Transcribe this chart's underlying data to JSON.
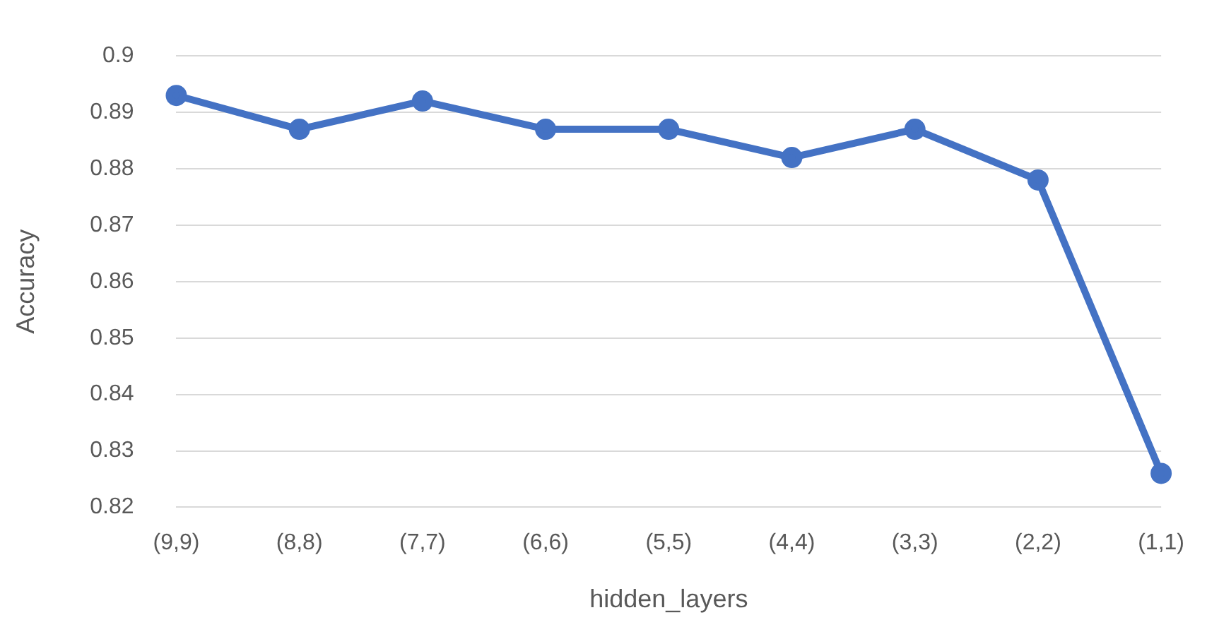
{
  "chart_data": {
    "type": "line",
    "xlabel": "hidden_layers",
    "ylabel": "Accuracy",
    "categories": [
      "(9,9)",
      "(8,8)",
      "(7,7)",
      "(6,6)",
      "(5,5)",
      "(4,4)",
      "(3,3)",
      "(2,2)",
      "(1,1)"
    ],
    "series": [
      {
        "color": "#4472c4",
        "values": [
          0.893,
          0.887,
          0.892,
          0.887,
          0.887,
          0.882,
          0.887,
          0.878,
          0.826
        ]
      }
    ],
    "ylim": [
      0.82,
      0.9
    ],
    "yticks": [
      0.82,
      0.83,
      0.84,
      0.85,
      0.86,
      0.87,
      0.88,
      0.89,
      0.9
    ],
    "grid": "y",
    "legend": false,
    "marker": "circle",
    "line_style": "solid"
  }
}
